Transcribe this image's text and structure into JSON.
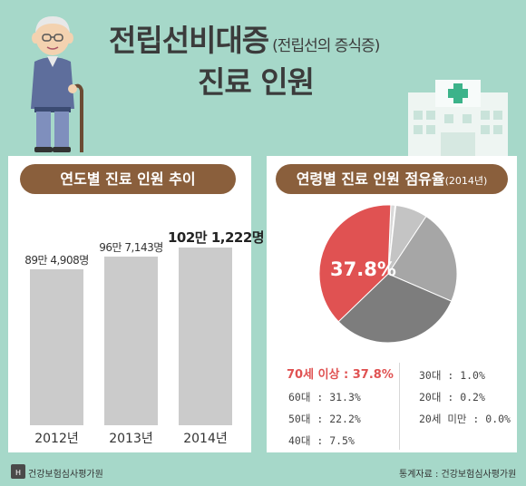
{
  "header": {
    "title": "전립선비대증",
    "title_sub": "(전립선의 증식증)",
    "subtitle": "진료 인원"
  },
  "left_panel": {
    "pill": "연도별 진료 인원 추이"
  },
  "right_panel": {
    "pill": "연령별 진료 인원 점유율",
    "pill_year": "(2014년)",
    "pie_label": "37.8%",
    "legend_col1": [
      "70세 이상 : 37.8%",
      "60대 : 31.3%",
      "50대 : 22.2%",
      "40대 : 7.5%"
    ],
    "legend_col2": [
      "30대 : 1.0%",
      "20대 : 0.2%",
      "20세 미만 : 0.0%"
    ]
  },
  "footer": {
    "logo_text": "건강보험심사평가원",
    "source": "통계자료 : 건강보험심사평가원"
  },
  "colors": {
    "bg": "#a6d8c9",
    "brown": "#8a5f3c",
    "red": "#e05252",
    "bar": "#cbcbcb"
  },
  "chart_data": [
    {
      "type": "bar",
      "categories": [
        "2012년",
        "2013년",
        "2014년"
      ],
      "values": [
        894908,
        967143,
        1021222
      ],
      "data_labels": [
        "89만 4,908명",
        "96만 7,143명",
        "102만 1,222명"
      ]
    },
    {
      "type": "pie",
      "categories": [
        "70세 이상",
        "60대",
        "50대",
        "40대",
        "30대",
        "20대",
        "20세 미만"
      ],
      "values": [
        37.8,
        31.3,
        22.2,
        7.5,
        1.0,
        0.2,
        0.0
      ],
      "colors": [
        "#e05252",
        "#7d7d7d",
        "#a6a6a6",
        "#c4c4c4",
        "#d9d9d9",
        "#e6e6e6",
        "#f0f0f0"
      ]
    }
  ]
}
